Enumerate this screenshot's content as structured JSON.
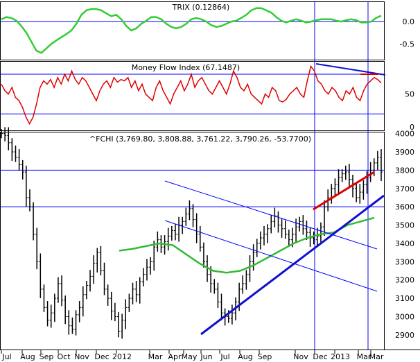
{
  "colors": {
    "background": "#ffffff",
    "grid_blue": "#0000ff",
    "trix_line": "#33cc33",
    "mfi_line": "#e00000",
    "price_bars": "#000000",
    "ma_line": "#33bb33",
    "trend_channel": "#0000ff",
    "trend_support": "#1010d0",
    "trend_red": "#dd0000"
  },
  "chart_data": [
    {
      "type": "line",
      "title": "TRIX (0.12864)",
      "y_ticks": [
        "0.0",
        "-0.5"
      ],
      "ylim": [
        -0.85,
        0.45
      ],
      "series": [
        {
          "name": "TRIX",
          "values": [
            0.05,
            0.1,
            0.08,
            0.02,
            -0.1,
            -0.25,
            -0.45,
            -0.65,
            -0.7,
            -0.6,
            -0.5,
            -0.42,
            -0.35,
            -0.28,
            -0.2,
            -0.05,
            0.15,
            0.25,
            0.28,
            0.28,
            0.25,
            0.18,
            0.12,
            0.15,
            0.05,
            -0.1,
            -0.2,
            -0.15,
            -0.05,
            0.02,
            0.1,
            0.1,
            0.05,
            -0.05,
            -0.12,
            -0.15,
            -0.12,
            -0.05,
            0.05,
            0.08,
            0.05,
            0.0,
            -0.08,
            -0.12,
            -0.1,
            -0.05,
            0.0,
            0.02,
            0.08,
            0.15,
            0.25,
            0.3,
            0.3,
            0.25,
            0.2,
            0.1,
            0.02,
            -0.02,
            0.02,
            0.05,
            0.02,
            -0.02,
            0.0,
            0.03,
            0.05,
            0.05,
            0.05,
            0.02,
            0.0,
            0.03,
            0.05,
            0.03,
            -0.02,
            -0.02,
            0.0,
            0.08,
            0.13
          ]
        }
      ]
    },
    {
      "type": "line",
      "title": "Money Flow Index (67.1487)",
      "y_ticks": [
        "50",
        "0"
      ],
      "ylim": [
        -5,
        100
      ],
      "series": [
        {
          "name": "Money Flow Index",
          "values": [
            65,
            55,
            50,
            60,
            45,
            40,
            30,
            15,
            5,
            15,
            35,
            60,
            70,
            65,
            72,
            60,
            75,
            65,
            80,
            70,
            85,
            72,
            65,
            75,
            70,
            60,
            50,
            40,
            55,
            65,
            70,
            60,
            75,
            68,
            72,
            70,
            75,
            60,
            70,
            55,
            65,
            50,
            45,
            40,
            60,
            70,
            55,
            45,
            35,
            50,
            60,
            70,
            55,
            65,
            80,
            60,
            70,
            75,
            65,
            55,
            50,
            60,
            70,
            60,
            50,
            65,
            85,
            75,
            60,
            55,
            65,
            50,
            45,
            40,
            35,
            50,
            45,
            60,
            55,
            40,
            38,
            42,
            50,
            55,
            60,
            50,
            45,
            70,
            92,
            85,
            70,
            65,
            55,
            50,
            60,
            55,
            45,
            40,
            55,
            50,
            60,
            45,
            40,
            55,
            65,
            70,
            75,
            72,
            67
          ]
        }
      ]
    },
    {
      "type": "line",
      "title": "^FCHI (3,769.80, 3,808.88, 3,761.22, 3,790.26, -53.7700)",
      "y_ticks": [
        "4000",
        "3900",
        "3800",
        "3700",
        "3600",
        "3500",
        "3400",
        "3300",
        "3200",
        "3100",
        "3000",
        "2900"
      ],
      "x_ticks": [
        "Jul",
        "Aug",
        "Sep",
        "Oct",
        "Nov",
        "Dec",
        "2012",
        "Mar",
        "Apr",
        "May",
        "Jun",
        "Jul",
        "Aug",
        "Sep",
        "Nov",
        "Dec",
        "2013",
        "Mar",
        "Mar"
      ],
      "ylim": [
        2820,
        4010
      ],
      "series": [
        {
          "name": "^FCHI",
          "values": [
            4000,
            3990,
            3950,
            3900,
            3870,
            3830,
            3790,
            3650,
            3600,
            3450,
            3300,
            3150,
            3050,
            2980,
            3020,
            3100,
            3180,
            3090,
            3000,
            2950,
            2930,
            3010,
            3050,
            3120,
            3170,
            3220,
            3290,
            3350,
            3250,
            3150,
            3100,
            3030,
            3000,
            2920,
            2980,
            3050,
            3100,
            3150,
            3120,
            3190,
            3230,
            3270,
            3300,
            3380,
            3420,
            3380,
            3410,
            3440,
            3470,
            3450,
            3500,
            3520,
            3560,
            3590,
            3530,
            3450,
            3380,
            3300,
            3230,
            3180,
            3150,
            3080,
            3020,
            3000,
            2990,
            3020,
            3080,
            3150,
            3180,
            3230,
            3300,
            3350,
            3400,
            3430,
            3450,
            3480,
            3520,
            3550,
            3500,
            3480,
            3450,
            3420,
            3450,
            3490,
            3520,
            3480,
            3460,
            3430,
            3420,
            3440,
            3490,
            3600,
            3650,
            3700,
            3720,
            3760,
            3780,
            3790,
            3750,
            3700,
            3650,
            3680,
            3720,
            3760,
            3800,
            3840,
            3870,
            3790
          ]
        },
        {
          "name": "Moving average",
          "values": [
            3360,
            3370,
            3385,
            3400,
            3390,
            3340,
            3290,
            3250,
            3240,
            3250,
            3280,
            3320,
            3360,
            3400,
            3430,
            3450,
            3460,
            3500,
            3520,
            3540
          ]
        }
      ]
    }
  ]
}
